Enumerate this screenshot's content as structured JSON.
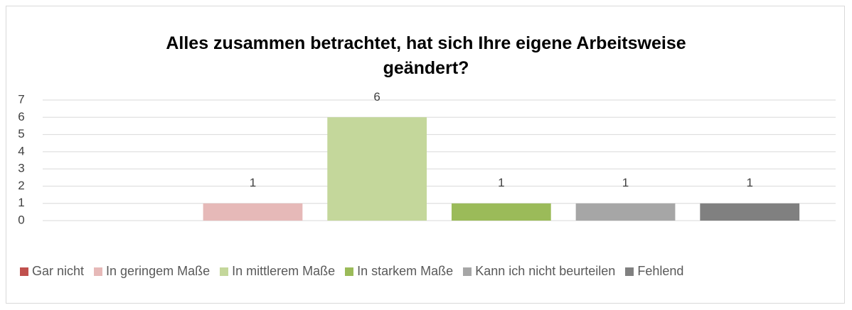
{
  "chart_data": {
    "type": "bar",
    "title": "Alles zusammen betrachtet, hat sich Ihre eigene Arbeitsweise geändert?",
    "categories": [
      null
    ],
    "series": [
      {
        "name": "Gar nicht",
        "color": "#c0504d",
        "values": [
          0
        ],
        "show_label": false
      },
      {
        "name": "In geringem Maße",
        "color": "#e6b9b8",
        "values": [
          1
        ],
        "show_label": true
      },
      {
        "name": "In mittlerem Maße",
        "color": "#c4d79b",
        "values": [
          6
        ],
        "show_label": true
      },
      {
        "name": "In starkem Maße",
        "color": "#9bbb59",
        "values": [
          1
        ],
        "show_label": true
      },
      {
        "name": "Kann ich nicht beurteilen",
        "color": "#a6a6a6",
        "values": [
          1
        ],
        "show_label": true
      },
      {
        "name": "Fehlend",
        "color": "#808080",
        "values": [
          1
        ],
        "show_label": true
      }
    ],
    "ylim": [
      0,
      7
    ],
    "yticks": [
      0,
      1,
      2,
      3,
      4,
      5,
      6,
      7
    ],
    "grid": true,
    "legend": "bottom"
  }
}
